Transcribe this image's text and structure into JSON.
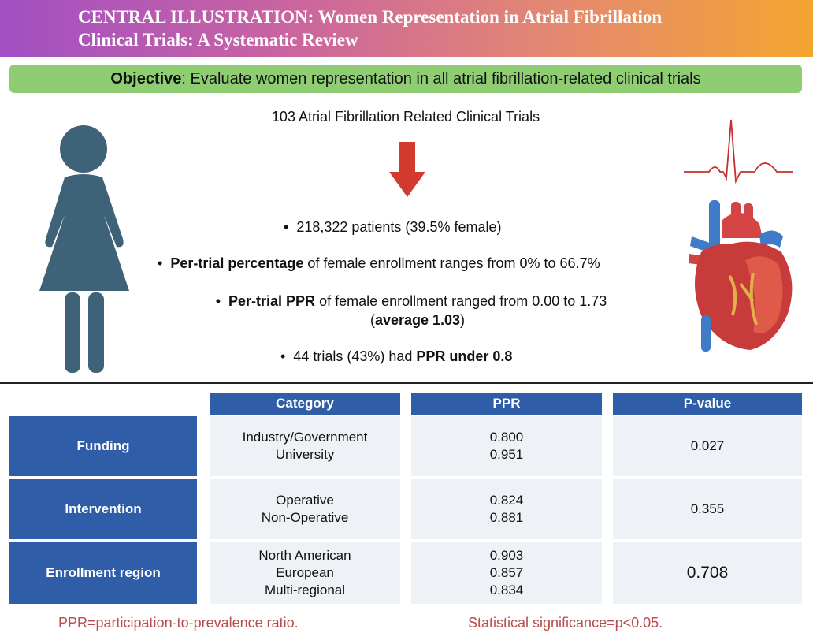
{
  "header": {
    "title_line1": "CENTRAL ILLUSTRATION: Women Representation in Atrial Fibrillation",
    "title_line2": "Clinical Trials: A Systematic Review"
  },
  "objective": {
    "label": "Objective",
    "text": ": Evaluate women representation in all atrial fibrillation-related clinical trials"
  },
  "overview": {
    "trials_title": "103 Atrial Fibrillation Related Clinical Trials",
    "bullets": {
      "b1_text": "218,322 patients (39.5% female)",
      "b2_bold": "Per-trial percentage",
      "b2_text": " of female enrollment ranges from 0% to 66.7%",
      "b3_bold": "Per-trial PPR",
      "b3_text": " of female enrollment ranged from 0.00 to 1.73",
      "b3_line2_open": "(",
      "b3_line2_bold": "average 1.03",
      "b3_line2_close": ")",
      "b4_text": "44 trials (43%) had ",
      "b4_bold": "PPR under 0.8"
    }
  },
  "table": {
    "headers": [
      "Category",
      "PPR",
      "P-value"
    ],
    "rows": [
      {
        "label": "Funding",
        "categories": [
          "Industry/Government",
          "University"
        ],
        "ppr": [
          "0.800",
          "0.951"
        ],
        "p_value": "0.027"
      },
      {
        "label": "Intervention",
        "categories": [
          "Operative",
          "Non-Operative"
        ],
        "ppr": [
          "0.824",
          "0.881"
        ],
        "p_value": "0.355"
      },
      {
        "label": "Enrollment region",
        "categories": [
          "North American",
          "European",
          "Multi-regional"
        ],
        "ppr": [
          "0.903",
          "0.857",
          "0.834"
        ],
        "p_value": "0.708"
      }
    ]
  },
  "footnotes": {
    "left": "PPR=participation-to-prevalence ratio.",
    "right": "Statistical significance=p<0.05."
  },
  "colors": {
    "table_blue": "#2f5da8",
    "objective_green": "#8fcd73",
    "arrow_red": "#d23a2e",
    "woman_icon": "#3e6378",
    "footnote_red": "#b84b4b"
  },
  "icons": [
    "woman-figure-icon",
    "down-arrow-icon",
    "ecg-line-icon",
    "heart-icon"
  ]
}
